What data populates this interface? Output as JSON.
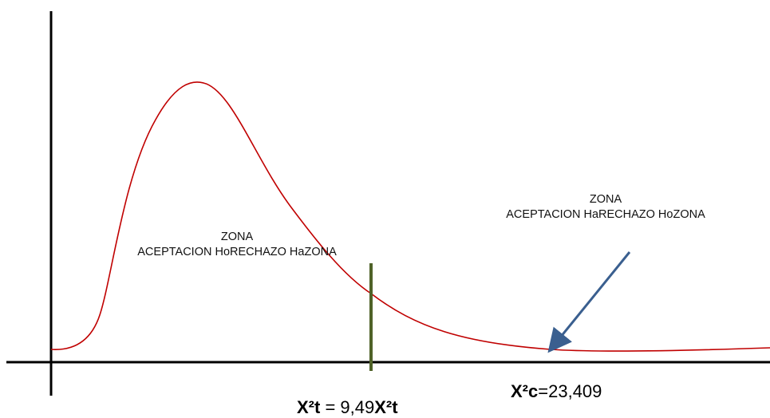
{
  "diagram": {
    "left_zone": {
      "line1": "ZONA",
      "line2": "ACEPTACION HoRECHAZO HaZONA"
    },
    "right_zone": {
      "line1": "ZONA",
      "line2": "ACEPTACION HaRECHAZO HoZONA"
    },
    "critical_value": {
      "prefix": "X²t",
      "separator": " = ",
      "value": "9,49",
      "suffix": "X²t"
    },
    "calculated_value": {
      "prefix": "X²c",
      "separator": "=",
      "value": "23,409"
    },
    "colors": {
      "curve": "#c00000",
      "critical_line": "#4f6228",
      "arrow": "#3a5f8f",
      "axes": "#000000"
    }
  }
}
